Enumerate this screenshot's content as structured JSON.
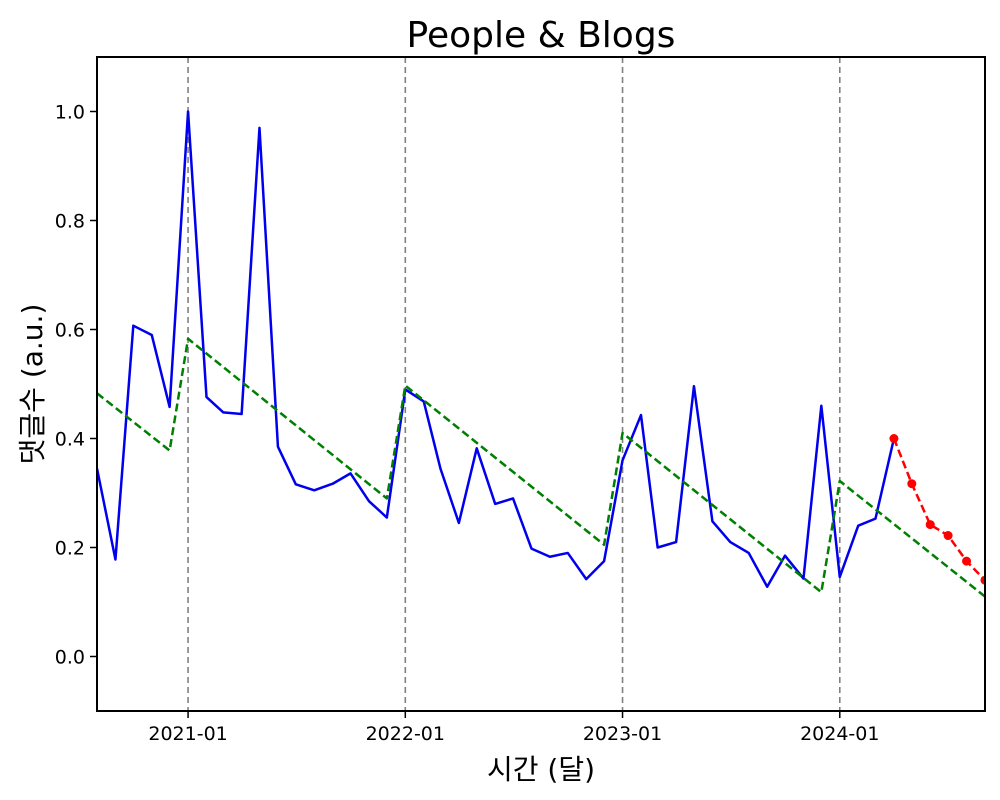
{
  "chart_data": {
    "type": "line",
    "title": "People & Blogs",
    "xlabel": "시간 (달)",
    "ylabel": "댓글수 (a.u.)",
    "x_axis": {
      "type": "date",
      "range": [
        "2020-08-01",
        "2024-09-01"
      ],
      "ticks": [
        "2021-01",
        "2022-01",
        "2023-01",
        "2024-01"
      ]
    },
    "ylim": [
      -0.1,
      1.1
    ],
    "yticks": [
      "0.0",
      "0.2",
      "0.4",
      "0.6",
      "0.8",
      "1.0"
    ],
    "grid": false,
    "vlines": {
      "x": [
        "2021-01-01",
        "2022-01-01",
        "2023-01-01",
        "2024-01-01"
      ],
      "color": "#808080",
      "style": "dashed"
    },
    "series": [
      {
        "color": "#0000ee",
        "style": "solid",
        "x": [
          "2020-08-01",
          "2020-09-01",
          "2020-10-01",
          "2020-11-01",
          "2020-12-01",
          "2021-01-01",
          "2021-02-01",
          "2021-03-01",
          "2021-04-01",
          "2021-05-01",
          "2021-06-01",
          "2021-07-01",
          "2021-08-01",
          "2021-09-01",
          "2021-10-01",
          "2021-11-01",
          "2021-12-01",
          "2022-01-01",
          "2022-02-01",
          "2022-03-01",
          "2022-04-01",
          "2022-05-01",
          "2022-06-01",
          "2022-07-01",
          "2022-08-01",
          "2022-09-01",
          "2022-10-01",
          "2022-11-01",
          "2022-12-01",
          "2023-01-01",
          "2023-02-01",
          "2023-03-01",
          "2023-04-01",
          "2023-05-01",
          "2023-06-01",
          "2023-07-01",
          "2023-08-01",
          "2023-09-01",
          "2023-10-01",
          "2023-11-01",
          "2023-12-01",
          "2024-01-01",
          "2024-02-01",
          "2024-03-01",
          "2024-04-01"
        ],
        "values": [
          0.345,
          0.178,
          0.607,
          0.59,
          0.458,
          1.0,
          0.476,
          0.448,
          0.445,
          0.97,
          0.385,
          0.316,
          0.305,
          0.317,
          0.336,
          0.285,
          0.255,
          0.49,
          0.468,
          0.345,
          0.245,
          0.382,
          0.28,
          0.29,
          0.198,
          0.183,
          0.19,
          0.142,
          0.175,
          0.36,
          0.443,
          0.2,
          0.21,
          0.496,
          0.248,
          0.21,
          0.19,
          0.128,
          0.185,
          0.143,
          0.46,
          0.146,
          0.24,
          0.253,
          0.4
        ]
      },
      {
        "color": "#008000",
        "style": "dashed",
        "x": [
          "2020-08-01",
          "2020-12-01",
          "2021-01-01",
          "2021-12-01",
          "2022-01-01",
          "2022-12-01",
          "2023-01-01",
          "2023-12-01",
          "2024-01-01",
          "2024-09-01"
        ],
        "values": [
          0.483,
          0.378,
          0.583,
          0.29,
          0.497,
          0.205,
          0.41,
          0.118,
          0.322,
          0.11
        ]
      },
      {
        "color": "#ff0000",
        "style": "dashed",
        "markers": true,
        "x": [
          "2024-04-01",
          "2024-05-01",
          "2024-06-01",
          "2024-07-01",
          "2024-08-01",
          "2024-09-01"
        ],
        "values": [
          0.4,
          0.317,
          0.242,
          0.222,
          0.175,
          0.14
        ]
      }
    ]
  }
}
